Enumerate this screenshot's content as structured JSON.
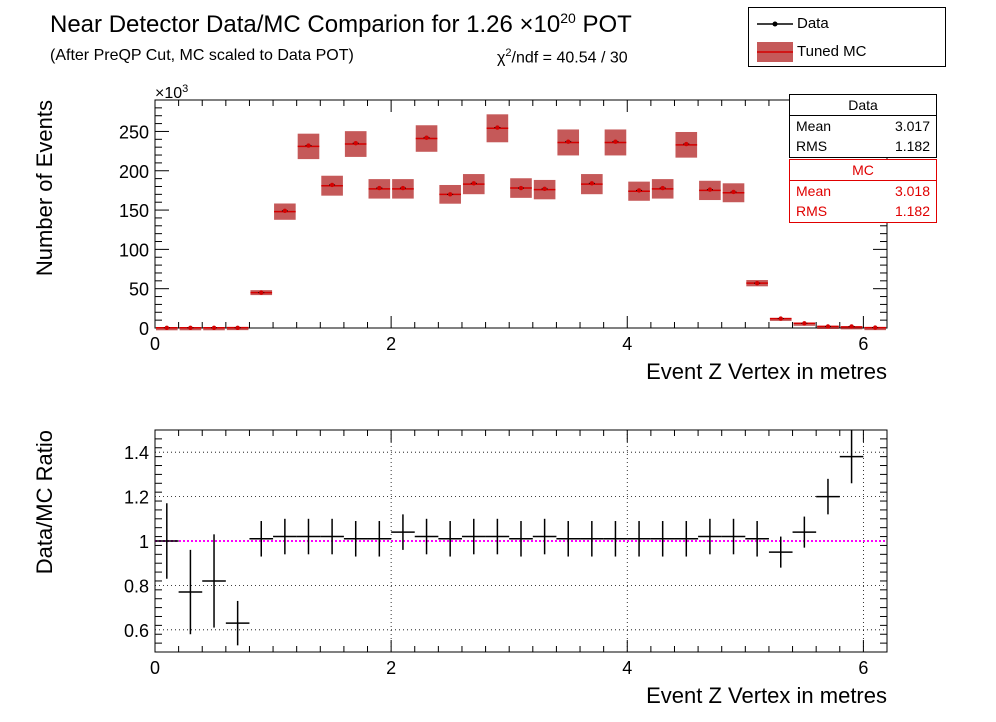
{
  "title": {
    "main": "Near Detector Data/MC Comparion for 1.26 ×10",
    "exp": "20",
    "suffix": " POT",
    "subtitle": "(After PreQP Cut, MC scaled to Data POT)",
    "chi2_sym": "χ",
    "chi2_exp": "2",
    "chi2_text": "/ndf = 40.54 / 30"
  },
  "legend": {
    "data_label": "Data",
    "mc_label": "Tuned MC"
  },
  "stats": {
    "data": {
      "header": "Data",
      "mean_label": "Mean",
      "mean": "3.017",
      "rms_label": "RMS",
      "rms": "1.182"
    },
    "mc": {
      "header": "MC",
      "mean_label": "Mean",
      "mean": "3.018",
      "rms_label": "RMS",
      "rms": "1.182"
    }
  },
  "colors": {
    "data": "#000000",
    "mc_band": "#b22222",
    "mc_marker": "#d40000",
    "ratio_ref": "#ff00ff"
  },
  "chart_data": [
    {
      "type": "bar",
      "xlabel": "Event Z Vertex in metres",
      "ylabel": "Number of Events",
      "y_multiplier_label": "×10",
      "y_multiplier_exp": "3",
      "xlim": [
        0,
        6.2
      ],
      "ylim": [
        0,
        290
      ],
      "xticks": [
        0,
        2,
        4,
        6
      ],
      "yticks": [
        0,
        50,
        100,
        150,
        200,
        250
      ],
      "bin_width": 0.2,
      "x": [
        0.1,
        0.3,
        0.5,
        0.7,
        0.9,
        1.1,
        1.3,
        1.5,
        1.7,
        1.9,
        2.1,
        2.3,
        2.5,
        2.7,
        2.9,
        3.1,
        3.3,
        3.5,
        3.7,
        3.9,
        4.1,
        4.3,
        4.5,
        4.7,
        4.9,
        5.1,
        5.3,
        5.5,
        5.7,
        5.9,
        6.1
      ],
      "series": [
        {
          "name": "Data",
          "values": [
            0.3,
            0.3,
            0.3,
            0.3,
            45,
            149,
            232,
            182,
            235,
            178,
            178,
            242,
            170,
            184,
            255,
            178,
            177,
            237,
            184,
            237,
            175,
            178,
            234,
            176,
            173,
            57,
            12,
            6,
            2,
            2,
            0.5
          ]
        },
        {
          "name": "Tuned MC",
          "values": [
            0.3,
            0.3,
            0.3,
            0.5,
            45,
            148,
            231,
            181,
            234,
            177,
            177,
            241,
            170,
            183,
            254,
            178,
            176,
            236,
            183,
            236,
            174,
            177,
            233,
            175,
            172,
            57,
            12,
            6,
            2,
            1.5,
            0.5
          ]
        }
      ]
    },
    {
      "type": "scatter",
      "xlabel": "Event Z Vertex in metres",
      "ylabel": "Data/MC Ratio",
      "xlim": [
        0,
        6.2
      ],
      "ylim": [
        0.5,
        1.5
      ],
      "xticks": [
        0,
        2,
        4,
        6
      ],
      "yticks": [
        0.6,
        0.8,
        1,
        1.2,
        1.4
      ],
      "ytick_labels": [
        "0.6",
        "0.8",
        "1",
        "1.2",
        "1.4"
      ],
      "reference_line": 1,
      "x": [
        0.1,
        0.3,
        0.5,
        0.7,
        0.9,
        1.1,
        1.3,
        1.5,
        1.7,
        1.9,
        2.1,
        2.3,
        2.5,
        2.7,
        2.9,
        3.1,
        3.3,
        3.5,
        3.7,
        3.9,
        4.1,
        4.3,
        4.5,
        4.7,
        4.9,
        5.1,
        5.3,
        5.5,
        5.7,
        5.9
      ],
      "values": [
        1.0,
        0.77,
        0.82,
        0.63,
        1.01,
        1.02,
        1.02,
        1.02,
        1.01,
        1.01,
        1.04,
        1.02,
        1.01,
        1.02,
        1.02,
        1.01,
        1.02,
        1.01,
        1.01,
        1.01,
        1.01,
        1.01,
        1.01,
        1.02,
        1.02,
        1.01,
        0.95,
        1.04,
        1.2,
        1.38
      ],
      "errors": [
        0.17,
        0.19,
        0.21,
        0.1,
        0.08,
        0.08,
        0.08,
        0.08,
        0.08,
        0.08,
        0.08,
        0.08,
        0.08,
        0.08,
        0.08,
        0.08,
        0.08,
        0.08,
        0.08,
        0.08,
        0.08,
        0.08,
        0.08,
        0.08,
        0.08,
        0.08,
        0.07,
        0.07,
        0.08,
        0.12
      ]
    }
  ]
}
